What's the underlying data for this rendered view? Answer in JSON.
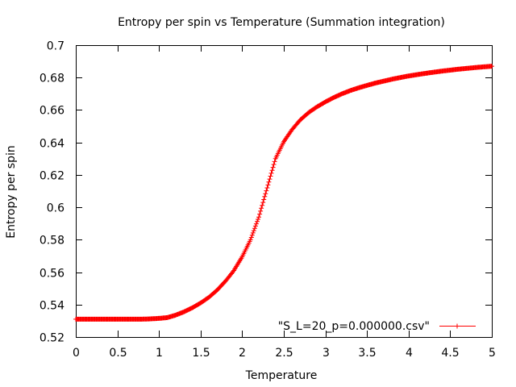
{
  "chart_data": {
    "type": "line",
    "title": "Entropy per spin vs Temperature (Summation integration)",
    "xlabel": "Temperature",
    "ylabel": "Entropy per spin",
    "xlim": [
      0,
      5
    ],
    "ylim": [
      0.52,
      0.7
    ],
    "xticks": [
      "0",
      "0.5",
      "1",
      "1.5",
      "2",
      "2.5",
      "3",
      "3.5",
      "4",
      "4.5",
      "5"
    ],
    "yticks": [
      "0.52",
      "0.54",
      "0.56",
      "0.58",
      "0.6",
      "0.62",
      "0.64",
      "0.66",
      "0.68",
      "0.7"
    ],
    "grid": false,
    "legend_position": "bottom-right",
    "colors": {
      "series": "#ff0000"
    },
    "series": [
      {
        "name": "\"S_L=20_p=0.000000.csv\"",
        "x": [
          0,
          0.1,
          0.2,
          0.3,
          0.4,
          0.5,
          0.6,
          0.7,
          0.8,
          0.9,
          1.0,
          1.1,
          1.2,
          1.3,
          1.4,
          1.5,
          1.6,
          1.7,
          1.8,
          1.9,
          2.0,
          2.1,
          2.2,
          2.3,
          2.4,
          2.5,
          2.6,
          2.7,
          2.8,
          2.9,
          3.0,
          3.1,
          3.2,
          3.3,
          3.4,
          3.5,
          3.6,
          3.7,
          3.8,
          3.9,
          4.0,
          4.1,
          4.2,
          4.3,
          4.4,
          4.5,
          4.6,
          4.7,
          4.8,
          4.9,
          5.0
        ],
        "y": [
          0.531,
          0.531,
          0.531,
          0.531,
          0.531,
          0.531,
          0.531,
          0.531,
          0.531,
          0.5312,
          0.5315,
          0.532,
          0.5335,
          0.5355,
          0.538,
          0.541,
          0.5445,
          0.549,
          0.5545,
          0.561,
          0.5695,
          0.58,
          0.594,
          0.612,
          0.63,
          0.6405,
          0.648,
          0.654,
          0.6585,
          0.662,
          0.665,
          0.6677,
          0.67,
          0.672,
          0.6737,
          0.6752,
          0.6766,
          0.6778,
          0.679,
          0.68,
          0.681,
          0.6818,
          0.6826,
          0.6833,
          0.684,
          0.6846,
          0.6852,
          0.6857,
          0.6862,
          0.6866,
          0.687
        ]
      }
    ]
  }
}
